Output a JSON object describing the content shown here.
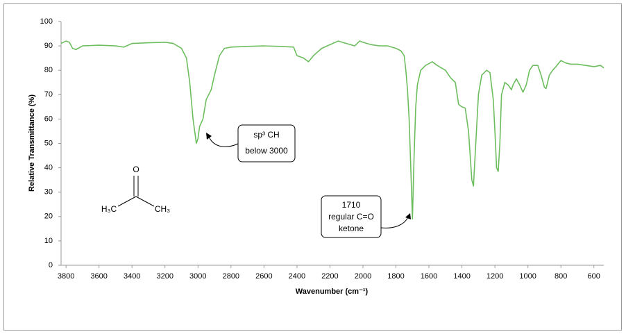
{
  "chart_data": {
    "type": "line",
    "y_label": "Relative Transmittance (%)",
    "x_label": "Wavenumber (cm⁻¹)",
    "annotations": [
      {
        "lines": [
          "sp³ CH",
          "below 3000"
        ]
      },
      {
        "lines": [
          "1710",
          "regular C=O",
          "ketone"
        ]
      }
    ],
    "molecule": {
      "atoms": [
        "O",
        "H₃C",
        "CH₃"
      ]
    },
    "color": "#6dbd5f",
    "xlim": [
      3830,
      540
    ],
    "ylim": [
      0,
      100
    ],
    "xticks": [
      3800,
      3600,
      3400,
      3200,
      3000,
      2800,
      2600,
      2400,
      2200,
      2000,
      1800,
      1600,
      1400,
      1200,
      1000,
      800,
      600
    ],
    "yticks": [
      0,
      10,
      20,
      30,
      40,
      50,
      60,
      70,
      80,
      90,
      100
    ],
    "grid": false,
    "x": [
      3830,
      3800,
      3780,
      3760,
      3740,
      3700,
      3600,
      3500,
      3450,
      3400,
      3300,
      3200,
      3150,
      3100,
      3070,
      3050,
      3030,
      3010,
      3000,
      2990,
      2970,
      2950,
      2920,
      2900,
      2870,
      2840,
      2800,
      2700,
      2600,
      2500,
      2420,
      2400,
      2360,
      2330,
      2300,
      2250,
      2200,
      2150,
      2100,
      2050,
      2020,
      2000,
      1950,
      1900,
      1850,
      1800,
      1770,
      1750,
      1740,
      1730,
      1720,
      1710,
      1700,
      1690,
      1680,
      1670,
      1650,
      1620,
      1580,
      1550,
      1500,
      1470,
      1440,
      1420,
      1400,
      1380,
      1360,
      1350,
      1340,
      1330,
      1320,
      1300,
      1280,
      1250,
      1230,
      1210,
      1200,
      1190,
      1180,
      1170,
      1160,
      1140,
      1120,
      1100,
      1090,
      1070,
      1050,
      1030,
      1010,
      990,
      970,
      940,
      920,
      900,
      890,
      870,
      850,
      830,
      800,
      770,
      740,
      700,
      650,
      600,
      560,
      540
    ],
    "values": [
      91,
      92,
      91.5,
      89,
      88.5,
      90,
      90.3,
      90,
      89.5,
      91,
      91.3,
      91.5,
      91,
      89,
      85,
      75,
      60,
      50,
      52,
      57,
      60,
      68,
      72,
      78,
      86,
      89,
      89.5,
      89.8,
      90,
      89.8,
      89.5,
      86,
      85,
      83.5,
      86,
      89,
      90.5,
      92,
      91,
      90,
      92,
      91.5,
      90.5,
      90,
      90,
      89,
      88,
      86,
      80,
      72,
      60,
      40,
      19,
      45,
      65,
      74,
      80,
      82,
      83.5,
      82,
      80,
      77,
      75,
      66,
      65,
      64.5,
      55,
      45,
      35,
      32.5,
      45,
      70,
      78,
      80,
      79,
      68,
      55,
      40,
      38.5,
      50,
      70,
      75,
      74,
      72,
      74,
      76.5,
      74,
      71,
      74,
      80,
      82,
      82,
      78,
      73,
      72.5,
      78,
      80,
      81.5,
      84,
      83,
      82.5,
      82.5,
      82,
      81.5,
      82,
      81
    ]
  }
}
